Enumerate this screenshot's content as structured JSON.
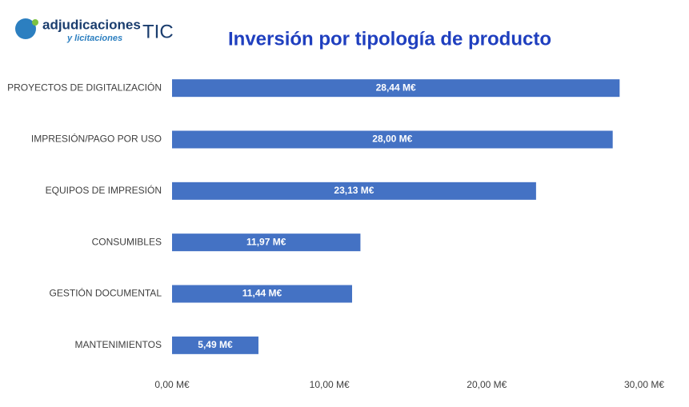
{
  "logo": {
    "name": "adjudicaciones",
    "subtitle": "y licitaciones",
    "suffix": "TIC"
  },
  "chart_data": {
    "type": "bar",
    "orientation": "horizontal",
    "title": "Inversión por tipología de producto",
    "categories": [
      "PROYECTOS DE DIGITALIZACIÓN",
      "IMPRESIÓN/PAGO POR USO",
      "EQUIPOS DE IMPRESIÓN",
      "CONSUMIBLES",
      "GESTIÓN DOCUMENTAL",
      "MANTENIMIENTOS"
    ],
    "values": [
      28.44,
      28.0,
      23.13,
      11.97,
      11.44,
      5.49
    ],
    "value_labels": [
      "28,44  M€",
      "28,00  M€",
      "23,13  M€",
      "11,97  M€",
      "11,44  M€",
      "5,49  M€"
    ],
    "color": "#4472c4",
    "xlim": [
      0,
      30
    ],
    "xticks": [
      {
        "value": 0,
        "label": "0,00  M€"
      },
      {
        "value": 10,
        "label": "10,00  M€"
      },
      {
        "value": 20,
        "label": "20,00  M€"
      },
      {
        "value": 30,
        "label": "30,00  M€"
      }
    ],
    "grid": false
  }
}
